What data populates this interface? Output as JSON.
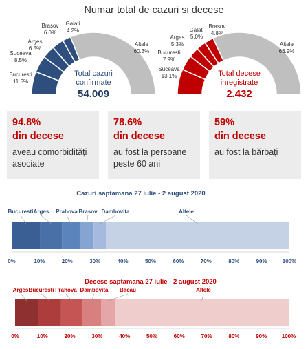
{
  "title": "Numar total de cazuri si decese",
  "chart_data": [
    {
      "type": "pie",
      "variant": "half-donut",
      "center_label": "Total cazuri confirmate",
      "center_label_lines": [
        "Total cazuri",
        "confirmate"
      ],
      "total": "54.009",
      "color": "#2e4f7e",
      "slices": [
        {
          "label": "Bucuresti",
          "value": 11.5,
          "display": "11.5%",
          "color": "#2e4f7e"
        },
        {
          "label": "Suceava",
          "value": 8.5,
          "display": "8.5%",
          "color": "#2e4f7e"
        },
        {
          "label": "Arges",
          "value": 6.5,
          "display": "6.5%",
          "color": "#2e4f7e"
        },
        {
          "label": "Brasov",
          "value": 6.0,
          "display": "6.0%",
          "color": "#2e4f7e"
        },
        {
          "label": "Galati",
          "value": 4.2,
          "display": "4.2%",
          "color": "#2e4f7e"
        },
        {
          "label": "Altele",
          "value": 60.3,
          "display": "60.3%",
          "color": "#bfbfbf"
        }
      ]
    },
    {
      "type": "pie",
      "variant": "half-donut",
      "center_label": "Total decese inregistrate",
      "center_label_lines": [
        "Total decese",
        "inregistrate"
      ],
      "total": "2.432",
      "color": "#c00000",
      "slices": [
        {
          "label": "Suceava",
          "value": 13.1,
          "display": "13.1%",
          "color": "#c00000"
        },
        {
          "label": "Bucuresti",
          "value": 7.9,
          "display": "7.9%",
          "color": "#c00000"
        },
        {
          "label": "Arges",
          "value": 5.3,
          "display": "5.3%",
          "color": "#c00000"
        },
        {
          "label": "Galati",
          "value": 5.0,
          "display": "5.0%",
          "color": "#c00000"
        },
        {
          "label": "Brasov",
          "value": 4.8,
          "display": "4.8%",
          "color": "#c00000"
        },
        {
          "label": "Altele",
          "value": 63.9,
          "display": "63.9%",
          "color": "#bfbfbf"
        }
      ]
    },
    {
      "type": "bar",
      "orientation": "horizontal-stacked",
      "title": "Cazuri saptamana 27 iulie - 2 august 2020",
      "title_color": "#2e4f7e",
      "label_color": "#2e4f7e",
      "xlim": [
        0,
        100
      ],
      "ticks": [
        "0%",
        "10%",
        "20%",
        "30%",
        "40%",
        "50%",
        "60%",
        "70%",
        "80%",
        "90%",
        "100%"
      ],
      "segments": [
        {
          "label": "Bucuresti",
          "value": 10.3,
          "color": "#3a5f95"
        },
        {
          "label": "Arges",
          "value": 7.8,
          "color": "#4a70a8"
        },
        {
          "label": "Prahova",
          "value": 6.4,
          "color": "#5b84bd"
        },
        {
          "label": "Brasov",
          "value": 5.0,
          "color": "#86a4d2"
        },
        {
          "label": "Dambovita",
          "value": 4.5,
          "color": "#a6badf"
        },
        {
          "label": "Altele",
          "value": 66.0,
          "color": "#c5d2e6"
        }
      ]
    },
    {
      "type": "bar",
      "orientation": "horizontal-stacked",
      "title": "Decese saptamana 27 iulie - 2 august 2020",
      "title_color": "#c00000",
      "label_color": "#c00000",
      "xlim": [
        0,
        100
      ],
      "ticks": [
        "0%",
        "10%",
        "20%",
        "30%",
        "40%",
        "50%",
        "60%",
        "70%",
        "80%",
        "90%",
        "100%"
      ],
      "segments": [
        {
          "label": "Arges",
          "value": 8.5,
          "color": "#8e2f30"
        },
        {
          "label": "Bucuresti",
          "value": 8.3,
          "color": "#ad3c3c"
        },
        {
          "label": "Prahova",
          "value": 7.7,
          "color": "#c55454"
        },
        {
          "label": "Dambovita",
          "value": 7.0,
          "color": "#d88080"
        },
        {
          "label": "Bacau",
          "value": 5.0,
          "color": "#e4a6a6"
        },
        {
          "label": "Altele",
          "value": 63.5,
          "color": "#efcdcd"
        }
      ]
    }
  ],
  "stats": [
    {
      "percent": "94.8%",
      "subtitle": "din decese",
      "desc_lines": [
        "aveau comorbidități",
        "asociate"
      ]
    },
    {
      "percent": "78.6%",
      "subtitle": "din decese",
      "desc_lines": [
        "au fost la persoane",
        "peste 60 ani"
      ]
    },
    {
      "percent": "59%",
      "subtitle": "din decese",
      "desc_lines": [
        "au fost la bărbați"
      ]
    }
  ]
}
